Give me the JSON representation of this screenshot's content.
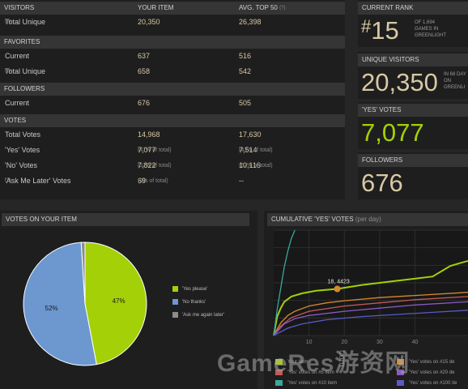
{
  "stats": {
    "visitors": {
      "header": "VISITORS",
      "col_your": "YOUR ITEM",
      "col_avg": "AVG. TOP 50",
      "col_avg_sup": "(?)",
      "rows": [
        {
          "label": "Total Unique",
          "sup": "(?)",
          "your": "20,350",
          "avg": "26,398"
        }
      ]
    },
    "favorites": {
      "header": "FAVORITES",
      "rows": [
        {
          "label": "Current",
          "your": "637",
          "avg": "516"
        },
        {
          "label": "Total Unique",
          "sup": "(?)",
          "your": "658",
          "avg": "542"
        }
      ]
    },
    "followers": {
      "header": "FOLLOWERS",
      "rows": [
        {
          "label": "Current",
          "your": "676",
          "avg": "505"
        }
      ]
    },
    "votes": {
      "header": "VOTES",
      "rows": [
        {
          "label": "Total Votes",
          "your": "14,968",
          "avg": "17,630"
        },
        {
          "label": "'Yes' Votes",
          "your": "7,077",
          "your_pct": "(47% of total)",
          "avg": "7,514",
          "avg_pct": "(43% of total)"
        },
        {
          "label": "'No' Votes",
          "your": "7,822",
          "your_pct": "(52% of total)",
          "avg": "10,116",
          "avg_pct": "(57% of total)"
        },
        {
          "label": "'Ask Me Later' Votes",
          "sup": "(?)",
          "your": "69",
          "your_pct": "(0% of total)",
          "avg": "--"
        }
      ]
    }
  },
  "summary": {
    "rank": {
      "header": "CURRENT RANK",
      "hash": "#",
      "value": "15",
      "line1": "OF 1,694",
      "line2": "GAMES IN",
      "line3": "GREENLIGHT"
    },
    "unique": {
      "header": "UNIQUE VISITORS",
      "value": "20,350",
      "line1": "IN 68 DAY",
      "line2": "ON",
      "line3": "GREENLI"
    },
    "yes": {
      "header": "'YES' VOTES",
      "value": "7,077"
    },
    "followers": {
      "header": "FOLLOWERS",
      "value": "676"
    }
  },
  "pie_panel": {
    "header": "VOTES ON YOUR ITEM",
    "legend": [
      {
        "label": "'Yes please'",
        "color": "#a4d007"
      },
      {
        "label": "'No thanks'",
        "color": "#6c97cf"
      },
      {
        "label": "'Ask me again later'",
        "color": "#8c8c8c"
      }
    ]
  },
  "line_panel": {
    "header": "CUMULATIVE 'YES' VOTES",
    "header_sub": "(per day)",
    "tooltip": "18, 4423",
    "axis_ticks": [
      "10",
      "20",
      "30",
      "40"
    ],
    "legend": [
      {
        "label": "Your Item",
        "color": "#a4d007"
      },
      {
        "label": "'Yes' votes on #15 de",
        "color": "#d68a2e"
      },
      {
        "label": "'Yes' votes on #5 item",
        "color": "#c45a5a"
      },
      {
        "label": "'Yes' votes on #20 de",
        "color": "#8a5ac4"
      },
      {
        "label": "'Yes' votes on #10 item",
        "color": "#3aa89a"
      },
      {
        "label": "'Yes' votes on #100 ite",
        "color": "#5a5ac8"
      }
    ]
  },
  "watermark": {
    "text": "GameRes游资网",
    "side": "com"
  },
  "chart_data": [
    {
      "type": "pie",
      "categories": [
        "'Yes please'",
        "'No thanks'",
        "'Ask me again later'"
      ],
      "values": [
        47,
        52,
        1
      ],
      "labels": [
        "47%",
        "52%",
        ""
      ],
      "colors": [
        "#a4d007",
        "#6c97cf",
        "#8c8c8c"
      ]
    },
    {
      "type": "line",
      "title": "CUMULATIVE 'YES' VOTES (per day)",
      "xlim": [
        0,
        55
      ],
      "ylim": [
        0,
        10000
      ],
      "xticks": [
        10,
        20,
        30,
        40
      ],
      "grid": true,
      "legend": "bottom",
      "annotation": {
        "x": 18,
        "y": 4423,
        "label": "18, 4423"
      },
      "series": [
        {
          "name": "Your Item",
          "color": "#a4d007",
          "x": [
            0,
            1,
            2,
            3,
            5,
            8,
            12,
            18,
            25,
            35,
            45,
            48,
            50,
            53,
            55
          ],
          "y": [
            0,
            1800,
            2600,
            3200,
            3700,
            4000,
            4250,
            4423,
            4800,
            5200,
            5600,
            6200,
            6600,
            6900,
            7077
          ]
        },
        {
          "name": "'Yes' votes on #15 de",
          "color": "#d68a2e",
          "x": [
            0,
            2,
            4,
            6,
            10,
            15,
            20,
            30,
            40,
            55
          ],
          "y": [
            0,
            1200,
            1900,
            2300,
            2800,
            3100,
            3300,
            3600,
            3800,
            4100
          ]
        },
        {
          "name": "'Yes' votes on #5 item",
          "color": "#c45a5a",
          "x": [
            0,
            2,
            5,
            10,
            20,
            30,
            40,
            55
          ],
          "y": [
            0,
            900,
            1700,
            2300,
            2800,
            3100,
            3400,
            3700
          ]
        },
        {
          "name": "'Yes' votes on #20 de",
          "color": "#8a5ac4",
          "x": [
            0,
            3,
            6,
            10,
            20,
            30,
            40,
            55
          ],
          "y": [
            0,
            1100,
            1600,
            1900,
            2300,
            2600,
            2900,
            3200
          ]
        },
        {
          "name": "'Yes' votes on #10 item",
          "color": "#3aa89a",
          "x": [
            0,
            1,
            2,
            3,
            4,
            5,
            6
          ],
          "y": [
            0,
            2500,
            4500,
            6500,
            8000,
            9200,
            10000
          ]
        },
        {
          "name": "'Yes' votes on #100 ite",
          "color": "#5a5ac8",
          "x": [
            0,
            4,
            8,
            15,
            25,
            35,
            45,
            55
          ],
          "y": [
            0,
            700,
            1100,
            1500,
            1800,
            2000,
            2200,
            2400
          ]
        }
      ]
    }
  ]
}
